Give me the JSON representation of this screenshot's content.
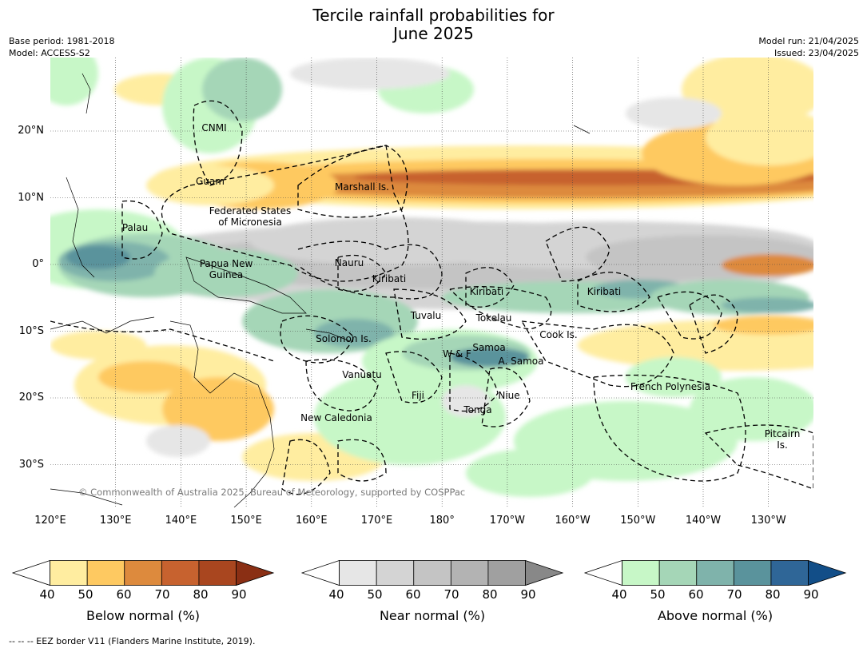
{
  "header": {
    "title_line1": "Tercile rainfall probabilities for",
    "title_line2": "June 2025",
    "base_period": "Base period: 1981-2018",
    "model": "Model: ACCESS-S2",
    "model_run": "Model run: 21/04/2025",
    "issued": "Issued: 23/04/2025"
  },
  "map": {
    "lat_ticks": [
      "20°N",
      "10°N",
      "0°",
      "10°S",
      "20°S",
      "30°S"
    ],
    "lon_ticks": [
      "120°E",
      "130°E",
      "140°E",
      "150°E",
      "160°E",
      "170°E",
      "180°",
      "170°W",
      "160°W",
      "150°W",
      "140°W",
      "130°W"
    ],
    "regions": [
      {
        "id": "cnmi",
        "label": "CNMI"
      },
      {
        "id": "guam",
        "label": "Guam"
      },
      {
        "id": "marshall",
        "label": "Marshall Is."
      },
      {
        "id": "fsm",
        "label": "Federated States\nof Micronesia"
      },
      {
        "id": "palau",
        "label": "Palau"
      },
      {
        "id": "png",
        "label": "Papua New\nGuinea"
      },
      {
        "id": "nauru",
        "label": "Nauru"
      },
      {
        "id": "kiribati1",
        "label": "Kiribati"
      },
      {
        "id": "kiribati2",
        "label": "Kiribati"
      },
      {
        "id": "kiribati3",
        "label": "Kiribati"
      },
      {
        "id": "tuvalu",
        "label": "Tuvalu"
      },
      {
        "id": "tokelau",
        "label": "Tokelau"
      },
      {
        "id": "cook",
        "label": "Cook Is."
      },
      {
        "id": "solomon",
        "label": "Solomon Is."
      },
      {
        "id": "samoa",
        "label": "Samoa"
      },
      {
        "id": "wf",
        "label": "W & F"
      },
      {
        "id": "asamoa",
        "label": "A. Samoa"
      },
      {
        "id": "vanuatu",
        "label": "Vanuatu"
      },
      {
        "id": "fiji",
        "label": "Fiji"
      },
      {
        "id": "niue",
        "label": "Niue"
      },
      {
        "id": "tonga",
        "label": "Tonga"
      },
      {
        "id": "frenchpoly",
        "label": "French Polynesia"
      },
      {
        "id": "newcal",
        "label": "New Caledonia"
      },
      {
        "id": "pitcairn",
        "label": "Pitcairn\nIs."
      }
    ],
    "copyright": "© Commonwealth of Australia 2025, Bureau of Meteorology, supported by COSPPac"
  },
  "colorbars": [
    {
      "label": "Below normal (%)",
      "ticks": [
        "40",
        "50",
        "60",
        "70",
        "80",
        "90"
      ],
      "colors": [
        "#ffffff",
        "#ffeda0",
        "#fec961",
        "#dd8a3d",
        "#c7622f",
        "#a9461f",
        "#8a2f14"
      ]
    },
    {
      "label": "Near normal (%)",
      "ticks": [
        "40",
        "50",
        "60",
        "70",
        "80",
        "90"
      ],
      "colors": [
        "#ffffff",
        "#e6e6e6",
        "#d4d4d4",
        "#c4c4c4",
        "#b3b3b3",
        "#a0a0a0",
        "#888888"
      ]
    },
    {
      "label": "Above normal (%)",
      "ticks": [
        "40",
        "50",
        "60",
        "70",
        "80",
        "90"
      ],
      "colors": [
        "#ffffff",
        "#c7f7c7",
        "#a5d6b7",
        "#7fb3ab",
        "#5a939c",
        "#2f6697",
        "#124e88"
      ]
    }
  ],
  "footnote": "--  --  -- EEZ border V11 (Flanders Marine Institute, 2019)."
}
